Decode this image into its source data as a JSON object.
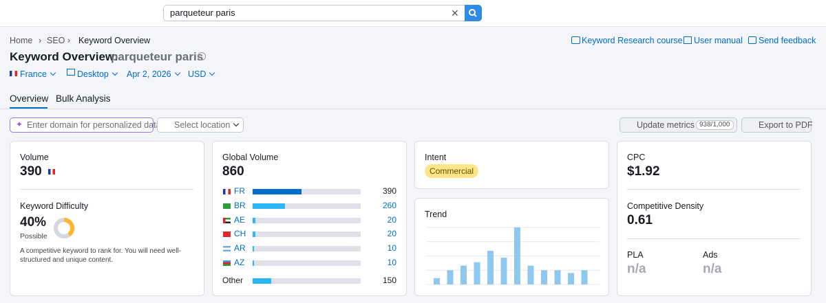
{
  "search": {
    "query": "parqueteur paris"
  },
  "breadcrumb": [
    "Home",
    "SEO",
    "Keyword Overview"
  ],
  "links": [
    "Keyword Research course",
    "User manual",
    "Send feedback"
  ],
  "header": {
    "title": "Keyword Overview:",
    "keyword": "parqueteur paris"
  },
  "filters": [
    "France",
    "Desktop",
    "Apr 2, 2026",
    "USD"
  ],
  "tabs": [
    "Overview",
    "Bulk Analysis"
  ],
  "toolbar": {
    "domain_placeholder": "Enter domain for personalized data",
    "location": "Select location",
    "update": "Update metrics",
    "quota": "938/1,000",
    "export": "Export to PDF"
  },
  "volume": {
    "label": "Volume",
    "value": 390
  },
  "difficulty": {
    "label": "Keyword Difficulty",
    "value": 40,
    "value_label": "40%",
    "level": "Possible",
    "note": "A competitive keyword to rank for. You will need well-structured and unique content."
  },
  "global_volume": {
    "label": "Global Volume",
    "total": 860,
    "countries": [
      {
        "code": "FR",
        "value": 390
      },
      {
        "code": "BR",
        "value": 260
      },
      {
        "code": "AE",
        "value": 20
      },
      {
        "code": "CH",
        "value": 20
      },
      {
        "code": "AR",
        "value": 10
      },
      {
        "code": "AZ",
        "value": 10
      }
    ],
    "other": {
      "label": "Other",
      "value": 150
    }
  },
  "intent": {
    "label": "Intent",
    "value": "Commercial"
  },
  "trend": {
    "label": "Trend",
    "values": [
      11,
      25,
      33,
      39,
      59,
      47,
      100,
      33,
      25,
      25,
      20,
      25
    ]
  },
  "cpc": {
    "label": "CPC",
    "value": "$1.92"
  },
  "density": {
    "label": "Competitive Density",
    "value": 0.61
  },
  "pla": {
    "label": "PLA",
    "value": "n/a"
  },
  "ads": {
    "label": "Ads",
    "value": "n/a"
  }
}
